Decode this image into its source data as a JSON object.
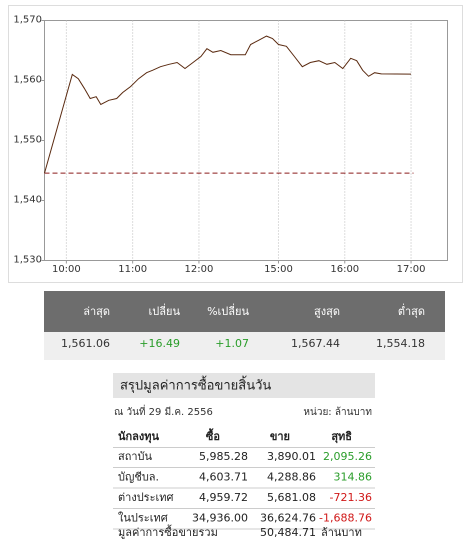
{
  "chart_data": {
    "type": "line",
    "x": [
      9.67,
      10.03,
      10.09,
      10.18,
      10.27,
      10.36,
      10.45,
      10.52,
      10.64,
      10.76,
      10.85,
      10.97,
      11.09,
      11.21,
      11.3,
      11.42,
      11.55,
      11.67,
      11.79,
      11.91,
      12.03,
      12.12,
      12.21,
      12.33,
      12.48,
      14.5,
      14.58,
      14.7,
      14.82,
      14.91,
      15.0,
      15.12,
      15.24,
      15.36,
      15.48,
      15.61,
      15.73,
      15.85,
      15.97,
      16.09,
      16.18,
      16.27,
      16.36,
      16.45,
      16.55,
      17.0
    ],
    "series": [
      {
        "color": "#5a2a10",
        "values": [
          1544.57,
          1558.7,
          1561.0,
          1560.3,
          1558.7,
          1557.0,
          1557.3,
          1556.0,
          1556.7,
          1557.0,
          1558.0,
          1559.0,
          1560.3,
          1561.3,
          1561.7,
          1562.3,
          1562.7,
          1563.0,
          1562.0,
          1563.0,
          1564.0,
          1565.3,
          1564.7,
          1565.0,
          1564.3,
          1564.3,
          1566.0,
          1566.7,
          1567.4,
          1567.0,
          1566.0,
          1565.7,
          1564.0,
          1562.3,
          1563.0,
          1563.3,
          1562.7,
          1563.0,
          1562.0,
          1563.7,
          1563.3,
          1561.7,
          1560.7,
          1561.3,
          1561.1,
          1561.06
        ]
      }
    ],
    "xlim": [
      9.67,
      17.55
    ],
    "xbreak": [
      12.5,
      14.5
    ],
    "xticks": [
      {
        "value": 10,
        "label": "10:00"
      },
      {
        "value": 11,
        "label": "11:00"
      },
      {
        "value": 12,
        "label": "12:00"
      },
      {
        "value": 15,
        "label": "15:00"
      },
      {
        "value": 16,
        "label": "16:00"
      },
      {
        "value": 17,
        "label": "17:00"
      }
    ],
    "ylim": [
      1530,
      1570
    ],
    "yticks": [
      {
        "value": 1530,
        "label": "1,530"
      },
      {
        "value": 1540,
        "label": "1,540"
      },
      {
        "value": 1550,
        "label": "1,550"
      },
      {
        "value": 1560,
        "label": "1,560"
      },
      {
        "value": 1570,
        "label": "1,570"
      }
    ],
    "reference_line": {
      "value": 1544.57,
      "color": "#8b1a1a"
    },
    "grid": "x"
  },
  "summary": {
    "headers": [
      "ล่าสุด",
      "เปลี่ยน",
      "%เปลี่ยน",
      "สูงสุด",
      "ต่ำสุด"
    ],
    "values": [
      "1,561.06",
      "+16.49",
      "+1.07",
      "1,567.44",
      "1,554.18"
    ]
  },
  "trading_table": {
    "title": "สรุปมูลค่าการซื้อขายสิ้นวัน",
    "date": "ณ วันที่ 29 มี.ค. 2556",
    "unit": "หน่วย: ล้านบาท",
    "headers": [
      "นักลงทุน",
      "ซื้อ",
      "ขาย",
      "สุทธิ"
    ],
    "rows": [
      [
        "สถาบัน",
        "5,985.28",
        "3,890.01",
        "2,095.26"
      ],
      [
        "บัญชีบล.",
        "4,603.71",
        "4,288.86",
        "314.86"
      ],
      [
        "ต่างประเทศ",
        "4,959.72",
        "5,681.08",
        "-721.36"
      ],
      [
        "ในประเทศ",
        "34,936.00",
        "36,624.76",
        "-1,688.76"
      ]
    ],
    "total": {
      "label": "มูลค่าการซื้อขายรวม",
      "value": "50,484.71",
      "unit": "ล้านบาท"
    }
  }
}
